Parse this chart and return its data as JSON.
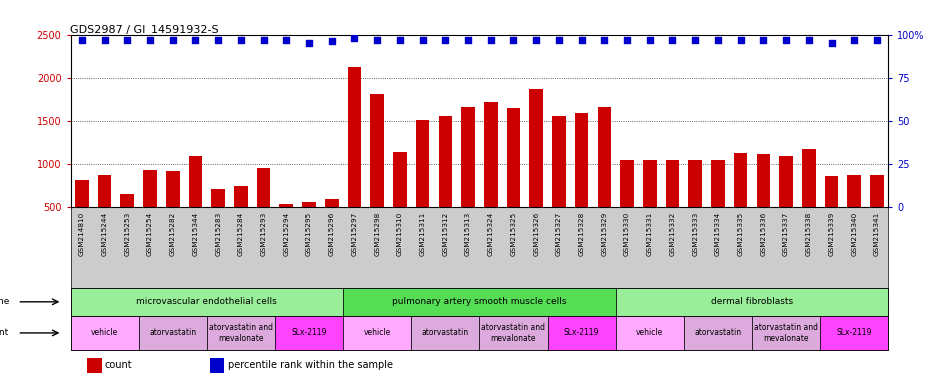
{
  "title": "GDS2987 / GI_14591932-S",
  "samples": [
    "GSM214810",
    "GSM215244",
    "GSM215253",
    "GSM215254",
    "GSM215282",
    "GSM215344",
    "GSM215283",
    "GSM215284",
    "GSM215293",
    "GSM215294",
    "GSM215295",
    "GSM215296",
    "GSM215297",
    "GSM215298",
    "GSM215310",
    "GSM215311",
    "GSM215312",
    "GSM215313",
    "GSM215324",
    "GSM215325",
    "GSM215326",
    "GSM215327",
    "GSM215328",
    "GSM215329",
    "GSM215330",
    "GSM215331",
    "GSM215332",
    "GSM215333",
    "GSM215334",
    "GSM215335",
    "GSM215336",
    "GSM215337",
    "GSM215338",
    "GSM215339",
    "GSM215340",
    "GSM215341"
  ],
  "counts": [
    820,
    880,
    660,
    930,
    920,
    1090,
    710,
    750,
    960,
    540,
    560,
    600,
    2130,
    1810,
    1140,
    1510,
    1560,
    1660,
    1720,
    1650,
    1870,
    1560,
    1590,
    1660,
    1050,
    1050,
    1050,
    1050,
    1050,
    1130,
    1120,
    1100,
    1170,
    860,
    870,
    880
  ],
  "percentile_ranks": [
    97,
    97,
    97,
    97,
    97,
    97,
    97,
    97,
    97,
    97,
    95,
    96,
    98,
    97,
    97,
    97,
    97,
    97,
    97,
    97,
    97,
    97,
    97,
    97,
    97,
    97,
    97,
    97,
    97,
    97,
    97,
    97,
    97,
    95,
    97,
    97
  ],
  "bar_color": "#cc0000",
  "dot_color": "#0000cc",
  "ylim_left": [
    500,
    2500
  ],
  "ylim_right": [
    0,
    100
  ],
  "yticks_left": [
    500,
    1000,
    1500,
    2000,
    2500
  ],
  "yticks_right": [
    0,
    25,
    50,
    75,
    100
  ],
  "cell_lines": [
    {
      "label": "microvascular endothelial cells",
      "start": 0,
      "end": 12,
      "color": "#99ee99"
    },
    {
      "label": "pulmonary artery smooth muscle cells",
      "start": 12,
      "end": 24,
      "color": "#55dd55"
    },
    {
      "label": "dermal fibroblasts",
      "start": 24,
      "end": 36,
      "color": "#99ee99"
    }
  ],
  "agents": [
    {
      "label": "vehicle",
      "start": 0,
      "end": 3,
      "color": "#ffaaff"
    },
    {
      "label": "atorvastatin",
      "start": 3,
      "end": 6,
      "color": "#ddaadd"
    },
    {
      "label": "atorvastatin and\nmevalonate",
      "start": 6,
      "end": 9,
      "color": "#ddaadd"
    },
    {
      "label": "SLx-2119",
      "start": 9,
      "end": 12,
      "color": "#ff44ff"
    },
    {
      "label": "vehicle",
      "start": 12,
      "end": 15,
      "color": "#ffaaff"
    },
    {
      "label": "atorvastatin",
      "start": 15,
      "end": 18,
      "color": "#ddaadd"
    },
    {
      "label": "atorvastatin and\nmevalonate",
      "start": 18,
      "end": 21,
      "color": "#ddaadd"
    },
    {
      "label": "SLx-2119",
      "start": 21,
      "end": 24,
      "color": "#ff44ff"
    },
    {
      "label": "vehicle",
      "start": 24,
      "end": 27,
      "color": "#ffaaff"
    },
    {
      "label": "atorvastatin",
      "start": 27,
      "end": 30,
      "color": "#ddaadd"
    },
    {
      "label": "atorvastatin and\nmevalonate",
      "start": 30,
      "end": 33,
      "color": "#ddaadd"
    },
    {
      "label": "SLx-2119",
      "start": 33,
      "end": 36,
      "color": "#ff44ff"
    }
  ],
  "legend_items": [
    {
      "label": "count",
      "color": "#cc0000"
    },
    {
      "label": "percentile rank within the sample",
      "color": "#0000cc"
    }
  ],
  "background_color": "#ffffff",
  "plot_bg_color": "#ffffff",
  "grid_color": "#333333",
  "tick_label_color_left": "#cc0000",
  "tick_label_color_right": "#0000cc",
  "xticklabel_bg": "#cccccc"
}
